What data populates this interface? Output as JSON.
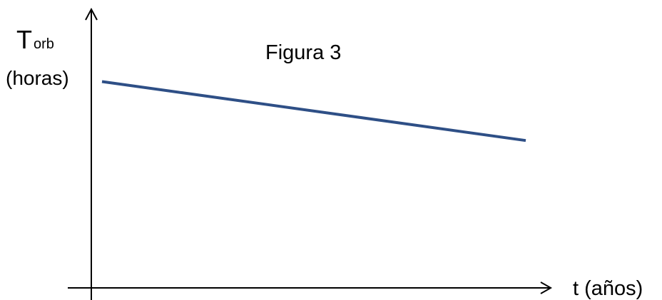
{
  "chart_data": {
    "type": "line",
    "title": "Figura 3",
    "xlabel": "t (años)",
    "ylabel": {
      "symbol": "T",
      "subscript": "orb",
      "unit": "(horas)"
    },
    "x": [
      0,
      1
    ],
    "series": [
      {
        "values": [
          0.77,
          0.55
        ]
      }
    ],
    "xlim": [
      0,
      1
    ],
    "ylim": [
      0,
      1
    ],
    "grid": false,
    "ticks": false,
    "colors": {
      "line": "#2e4f86",
      "axis": "#000000"
    }
  }
}
